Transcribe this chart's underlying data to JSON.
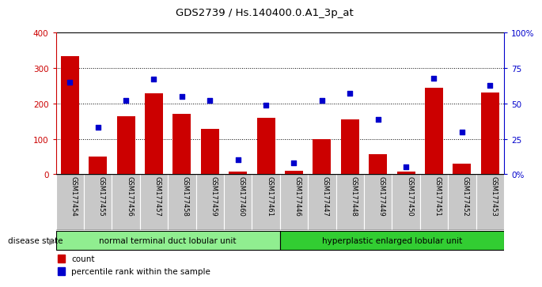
{
  "title": "GDS2739 / Hs.140400.0.A1_3p_at",
  "samples": [
    "GSM177454",
    "GSM177455",
    "GSM177456",
    "GSM177457",
    "GSM177458",
    "GSM177459",
    "GSM177460",
    "GSM177461",
    "GSM177446",
    "GSM177447",
    "GSM177448",
    "GSM177449",
    "GSM177450",
    "GSM177451",
    "GSM177452",
    "GSM177453"
  ],
  "counts": [
    335,
    50,
    165,
    228,
    170,
    128,
    8,
    160,
    10,
    100,
    155,
    57,
    8,
    245,
    30,
    230
  ],
  "percentiles": [
    65,
    33,
    52,
    67,
    55,
    52,
    10,
    49,
    8,
    52,
    57,
    39,
    5,
    68,
    30,
    63
  ],
  "group1_label": "normal terminal duct lobular unit",
  "group2_label": "hyperplastic enlarged lobular unit",
  "group1_count": 8,
  "group2_count": 8,
  "bar_color": "#cc0000",
  "dot_color": "#0000cc",
  "ylim_left": [
    0,
    400
  ],
  "ylim_right": [
    0,
    100
  ],
  "yticks_left": [
    0,
    100,
    200,
    300,
    400
  ],
  "yticks_right": [
    0,
    25,
    50,
    75,
    100
  ],
  "ytick_labels_right": [
    "0%",
    "25",
    "50",
    "75",
    "100%"
  ],
  "group1_color": "#90ee90",
  "group2_color": "#32cd32",
  "tick_area_color": "#c8c8c8",
  "legend_count": "count",
  "legend_pct": "percentile rank within the sample",
  "disease_state_label": "disease state"
}
